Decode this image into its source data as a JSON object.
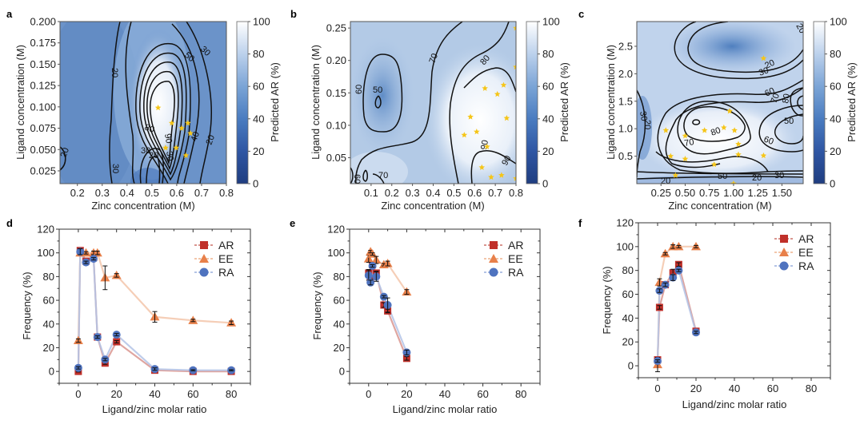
{
  "chart_data": [
    {
      "panel": "a",
      "type": "heatmap",
      "subtype": "contour",
      "xlabel": "Zinc concentration (M)",
      "ylabel": "Ligand concentration (M)",
      "xlim": [
        0.13,
        0.8
      ],
      "ylim": [
        0.01,
        0.2
      ],
      "xticks": [
        "0.2",
        "0.3",
        "0.4",
        "0.5",
        "0.6",
        "0.7",
        "0.8"
      ],
      "xtick_values": [
        0.2,
        0.3,
        0.4,
        0.5,
        0.6,
        0.7,
        0.8
      ],
      "yticks": [
        "0.025",
        "0.050",
        "0.075",
        "0.100",
        "0.125",
        "0.150",
        "0.175",
        "0.200"
      ],
      "ytick_values": [
        0.025,
        0.05,
        0.075,
        0.1,
        0.125,
        0.15,
        0.175,
        0.2
      ],
      "colorbar": {
        "label": "Predicted AR (%)",
        "ticks": [
          "0",
          "20",
          "40",
          "60",
          "80",
          "100"
        ],
        "range": [
          0,
          100
        ],
        "low_color": "#1f3d80",
        "high_color": "#ffffff"
      },
      "contour_labels": [
        "20",
        "20",
        "30",
        "30",
        "30",
        "50",
        "80",
        "90",
        "40",
        "20",
        "30",
        "20"
      ],
      "peak": {
        "x": 0.53,
        "y": 0.11,
        "value": 100
      },
      "points_marker": "star",
      "point_color": "#f5c518",
      "points": [
        [
          0.525,
          0.099
        ],
        [
          0.58,
          0.081
        ],
        [
          0.62,
          0.075
        ],
        [
          0.645,
          0.081
        ],
        [
          0.655,
          0.069
        ],
        [
          0.555,
          0.052
        ],
        [
          0.598,
          0.052
        ],
        [
          0.637,
          0.043
        ]
      ]
    },
    {
      "panel": "b",
      "type": "heatmap",
      "subtype": "contour",
      "xlabel": "Zinc concentration (M)",
      "ylabel": "Ligand concentration (M)",
      "xlim": [
        0.0,
        0.8
      ],
      "ylim": [
        0.01,
        0.26
      ],
      "xticks": [
        "0.1",
        "0.2",
        "0.3",
        "0.4",
        "0.5",
        "0.6",
        "0.7",
        "0.8"
      ],
      "xtick_values": [
        0.1,
        0.2,
        0.3,
        0.4,
        0.5,
        0.6,
        0.7,
        0.8
      ],
      "yticks": [
        "0.05",
        "0.10",
        "0.15",
        "0.20",
        "0.25"
      ],
      "ytick_values": [
        0.05,
        0.1,
        0.15,
        0.2,
        0.25
      ],
      "colorbar": {
        "label": "Predicted AR (%)",
        "ticks": [
          "0",
          "20",
          "40",
          "60",
          "80",
          "100"
        ],
        "range": [
          0,
          100
        ],
        "low_color": "#1f3d80",
        "high_color": "#ffffff"
      },
      "contour_labels": [
        "60",
        "50",
        "70",
        "80",
        "90",
        "90",
        "70",
        "60"
      ],
      "points_marker": "star",
      "point_color": "#f5c518",
      "points": [
        [
          0.55,
          0.085
        ],
        [
          0.58,
          0.113
        ],
        [
          0.61,
          0.09
        ],
        [
          0.65,
          0.157
        ],
        [
          0.71,
          0.148
        ],
        [
          0.74,
          0.162
        ],
        [
          0.755,
          0.111
        ],
        [
          0.66,
          0.067
        ],
        [
          0.635,
          0.035
        ],
        [
          0.68,
          0.02
        ],
        [
          0.73,
          0.023
        ],
        [
          0.8,
          0.018
        ],
        [
          0.8,
          0.19
        ],
        [
          0.8,
          0.25
        ]
      ]
    },
    {
      "panel": "c",
      "type": "heatmap",
      "subtype": "contour",
      "xlabel": "Zinc concentration (M)",
      "ylabel": "Ligand concentration (M)",
      "xlim": [
        0.0,
        1.72
      ],
      "ylim": [
        0.0,
        2.95
      ],
      "xticks": [
        "0.25",
        "0.50",
        "0.75",
        "1.00",
        "1.25",
        "1.50"
      ],
      "xtick_values": [
        0.25,
        0.5,
        0.75,
        1.0,
        1.25,
        1.5
      ],
      "yticks": [
        "0.5",
        "1.0",
        "1.5",
        "2.0",
        "2.5"
      ],
      "ytick_values": [
        0.5,
        1.0,
        1.5,
        2.0,
        2.5
      ],
      "colorbar": {
        "label": "Predicted AR (%)",
        "ticks": [
          "0",
          "20",
          "40",
          "60",
          "80",
          "100"
        ],
        "range": [
          0,
          100
        ],
        "low_color": "#1f3d80",
        "high_color": "#ffffff"
      },
      "contour_labels": [
        "20",
        "20",
        "30",
        "60",
        "70",
        "80",
        "30",
        "20",
        "80",
        "70",
        "50",
        "60",
        "50",
        "20",
        "30",
        "20"
      ],
      "points_marker": "star",
      "point_color": "#f5c518",
      "points": [
        [
          0.3,
          0.97
        ],
        [
          0.35,
          0.5
        ],
        [
          0.4,
          0.15
        ],
        [
          0.5,
          0.87
        ],
        [
          0.5,
          0.45
        ],
        [
          0.7,
          0.97
        ],
        [
          0.8,
          0.35
        ],
        [
          0.9,
          1.02
        ],
        [
          0.96,
          1.32
        ],
        [
          1.01,
          0.97
        ],
        [
          1.05,
          0.72
        ],
        [
          1.05,
          0.53
        ],
        [
          1.31,
          0.51
        ],
        [
          1.31,
          2.28
        ],
        [
          1.0,
          0.0
        ]
      ]
    },
    {
      "panel": "d",
      "type": "line",
      "xlabel": "Ligand/zinc molar ratio",
      "ylabel": "Frequency (%)",
      "xlim": [
        -10,
        90
      ],
      "ylim": [
        -10,
        120
      ],
      "xticks": [
        "0",
        "20",
        "40",
        "60",
        "80"
      ],
      "xtick_values": [
        0,
        20,
        40,
        60,
        80
      ],
      "yticks": [
        "0",
        "20",
        "40",
        "60",
        "80",
        "100",
        "120"
      ],
      "ytick_values": [
        0,
        20,
        40,
        60,
        80,
        100,
        120
      ],
      "legend": "top-right",
      "series": [
        {
          "name": "AR",
          "color": "#c0302a",
          "line_color": "#d9958f",
          "marker": "square",
          "x": [
            0,
            1,
            4,
            8,
            10,
            14,
            20,
            40,
            60,
            80
          ],
          "y": [
            0,
            102,
            93,
            96,
            29,
            7,
            25,
            1,
            0,
            0
          ],
          "err": [
            0.5,
            1,
            1,
            1.5,
            1.5,
            1,
            1,
            0.5,
            0.5,
            0.5
          ]
        },
        {
          "name": "EE",
          "color": "#e8804a",
          "line_color": "#f3c6aa",
          "marker": "triangle",
          "x": [
            0,
            1,
            4,
            8,
            10,
            14,
            20,
            40,
            60,
            80
          ],
          "y": [
            26,
            100,
            100,
            100,
            100,
            79,
            81,
            46,
            43,
            41
          ],
          "err": [
            1.5,
            1,
            1,
            1.5,
            1.5,
            10,
            1.5,
            4.5,
            1,
            1.5
          ]
        },
        {
          "name": "RA",
          "color": "#4f73bf",
          "line_color": "#b3c3e6",
          "marker": "circle",
          "x": [
            0,
            1,
            4,
            8,
            10,
            14,
            20,
            40,
            60,
            80
          ],
          "y": [
            3,
            101,
            92,
            95,
            29,
            10,
            31,
            2,
            1,
            1
          ],
          "err": [
            1,
            2.5,
            1,
            1,
            1,
            1,
            1,
            1,
            0.5,
            0.5
          ]
        }
      ]
    },
    {
      "panel": "e",
      "type": "line",
      "xlabel": "Ligand/zinc molar ratio",
      "ylabel": "Frequency (%)",
      "xlim": [
        -10,
        90
      ],
      "ylim": [
        -10,
        120
      ],
      "xticks": [
        "0",
        "20",
        "40",
        "60",
        "80"
      ],
      "xtick_values": [
        0,
        20,
        40,
        60,
        80
      ],
      "yticks": [
        "0",
        "20",
        "40",
        "60",
        "80",
        "100",
        "120"
      ],
      "ytick_values": [
        0,
        20,
        40,
        60,
        80,
        100,
        120
      ],
      "legend": "top-right",
      "series": [
        {
          "name": "AR",
          "color": "#c0302a",
          "line_color": "#d9958f",
          "marker": "square",
          "x": [
            0,
            1,
            2,
            4,
            8,
            10,
            20
          ],
          "y": [
            83,
            77,
            90,
            83,
            56,
            51,
            11
          ],
          "err": [
            3,
            1,
            1,
            1.5,
            2,
            1.5,
            1.5
          ]
        },
        {
          "name": "EE",
          "color": "#e8804a",
          "line_color": "#f3c6aa",
          "marker": "triangle",
          "x": [
            0,
            1,
            2,
            4,
            8,
            10,
            20
          ],
          "y": [
            95,
            101,
            99,
            94,
            90,
            91,
            67
          ],
          "err": [
            3,
            1,
            1,
            3,
            1,
            2,
            2
          ]
        },
        {
          "name": "RA",
          "color": "#4f73bf",
          "line_color": "#b3c3e6",
          "marker": "circle",
          "x": [
            0,
            1,
            2,
            4,
            8,
            10,
            20
          ],
          "y": [
            81,
            75,
            89,
            80,
            63,
            56,
            16
          ],
          "err": [
            4,
            2,
            1,
            4,
            1,
            6,
            2
          ]
        }
      ]
    },
    {
      "panel": "f",
      "type": "line",
      "xlabel": "Ligand/zinc molar ratio",
      "ylabel": "Frequency (%)",
      "xlim": [
        -10,
        90
      ],
      "ylim": [
        -10,
        120
      ],
      "xticks": [
        "0",
        "20",
        "40",
        "60",
        "80"
      ],
      "xtick_values": [
        0,
        20,
        40,
        60,
        80
      ],
      "yticks": [
        "0",
        "20",
        "40",
        "60",
        "80",
        "100",
        "120"
      ],
      "ytick_values": [
        0,
        20,
        40,
        60,
        80,
        100,
        120
      ],
      "legend": "top-right",
      "series": [
        {
          "name": "AR",
          "color": "#c0302a",
          "line_color": "#d9958f",
          "marker": "square",
          "x": [
            0,
            1,
            4,
            8,
            11,
            20
          ],
          "y": [
            5,
            49,
            68,
            78,
            85,
            29
          ],
          "err": [
            1,
            1.5,
            1.5,
            3,
            1.5,
            1.5
          ]
        },
        {
          "name": "EE",
          "color": "#e8804a",
          "line_color": "#f3c6aa",
          "marker": "triangle",
          "x": [
            0,
            1,
            4,
            8,
            11,
            20
          ],
          "y": [
            1,
            70,
            94,
            100,
            100,
            100
          ],
          "err": [
            6,
            3,
            1,
            1.5,
            1,
            1
          ]
        },
        {
          "name": "RA",
          "color": "#4f73bf",
          "line_color": "#b3c3e6",
          "marker": "circle",
          "x": [
            0,
            1,
            4,
            8,
            11,
            20
          ],
          "y": [
            4,
            63,
            68,
            74,
            80,
            28
          ],
          "err": [
            1,
            1.5,
            1.5,
            2.5,
            1,
            1
          ]
        }
      ]
    }
  ]
}
